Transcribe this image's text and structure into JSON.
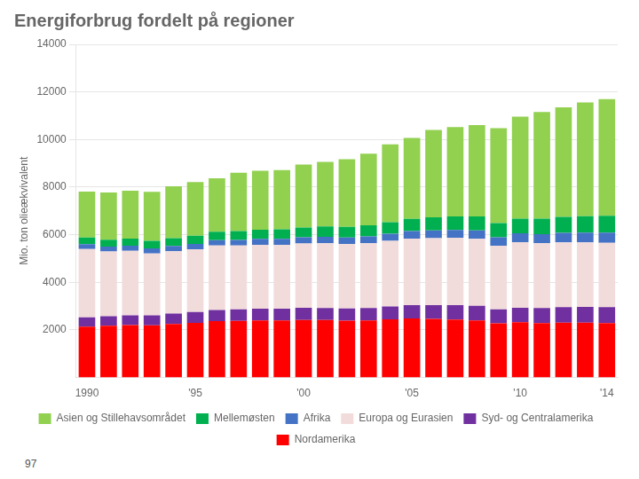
{
  "chart_data": {
    "type": "bar",
    "title": "Energiforbrug fordelt på regioner",
    "ylabel": "Mio. ton olieækvivalent",
    "annotations": [
      "97"
    ],
    "categories": [
      "1990",
      null,
      null,
      null,
      null,
      "'95",
      null,
      null,
      null,
      null,
      "'00",
      null,
      null,
      null,
      null,
      "'05",
      null,
      null,
      null,
      null,
      "'10",
      null,
      null,
      null,
      "'14"
    ],
    "series": [
      {
        "name": "Nordamerika",
        "color": "#ff0000",
        "values": [
          2140,
          2175,
          2200,
          2195,
          2250,
          2300,
          2370,
          2380,
          2395,
          2395,
          2420,
          2415,
          2390,
          2400,
          2445,
          2480,
          2460,
          2440,
          2400,
          2280,
          2320,
          2290,
          2310,
          2305,
          2290
        ]
      },
      {
        "name": "Syd- og Centralamerika",
        "color": "#7030a0",
        "values": [
          390,
          400,
          415,
          420,
          440,
          450,
          465,
          485,
          500,
          500,
          510,
          510,
          510,
          525,
          540,
          560,
          580,
          600,
          610,
          580,
          610,
          630,
          645,
          660,
          670
        ]
      },
      {
        "name": "Europa og Eurasien",
        "color": "#f2dcdb",
        "values": [
          2870,
          2720,
          2710,
          2600,
          2620,
          2640,
          2710,
          2680,
          2680,
          2680,
          2700,
          2720,
          2710,
          2720,
          2760,
          2800,
          2820,
          2830,
          2820,
          2680,
          2760,
          2720,
          2720,
          2710,
          2700
        ]
      },
      {
        "name": "Afrika",
        "color": "#4472c4",
        "values": [
          200,
          205,
          210,
          215,
          220,
          225,
          230,
          240,
          250,
          255,
          260,
          270,
          275,
          285,
          295,
          310,
          325,
          335,
          350,
          355,
          370,
          385,
          400,
          415,
          425
        ]
      },
      {
        "name": "Mellemøsten",
        "color": "#00b050",
        "values": [
          280,
          295,
          305,
          315,
          325,
          340,
          355,
          370,
          385,
          395,
          410,
          430,
          450,
          470,
          490,
          520,
          545,
          565,
          590,
          590,
          620,
          650,
          675,
          690,
          710
        ]
      },
      {
        "name": "Asien og Stillehavsområdet",
        "color": "#92d050",
        "values": [
          1930,
          1980,
          2010,
          2060,
          2185,
          2255,
          2240,
          2445,
          2480,
          2490,
          2650,
          2720,
          2840,
          3005,
          3270,
          3400,
          3670,
          3750,
          3840,
          3990,
          4280,
          4480,
          4600,
          4780,
          4900
        ]
      }
    ],
    "stacked": true,
    "ylim": [
      0,
      14000
    ],
    "yticks": [
      2000,
      4000,
      6000,
      8000,
      10000,
      12000,
      14000
    ],
    "grid": true,
    "legend": "bottom"
  }
}
